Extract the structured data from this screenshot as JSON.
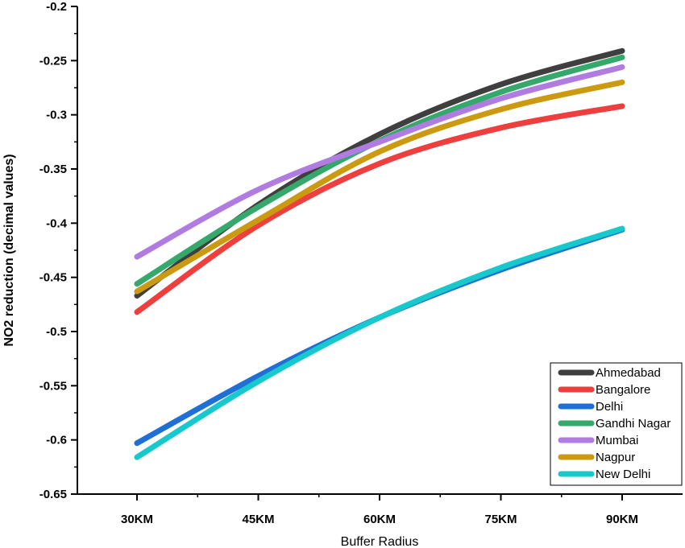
{
  "chart_data": {
    "type": "line",
    "xlabel": "Buffer Radius",
    "ylabel": "NO2 reduction (decimal values)",
    "categories": [
      "30KM",
      "45KM",
      "60KM",
      "75KM",
      "90KM"
    ],
    "yticks": [
      "-0.2",
      "-0.25",
      "-0.3",
      "-0.35",
      "-0.4",
      "-0.45",
      "-0.5",
      "-0.55",
      "-0.6",
      "-0.65"
    ],
    "ylim": [
      -0.65,
      -0.2
    ],
    "grid": false,
    "legend_position": "bottom-right",
    "series": [
      {
        "name": "Ahmedabad",
        "color": "#3f3f3f",
        "values": [
          -0.467,
          -0.383,
          -0.318,
          -0.272,
          -0.241
        ]
      },
      {
        "name": "Bangalore",
        "color": "#ee3e3e",
        "values": [
          -0.482,
          -0.402,
          -0.345,
          -0.312,
          -0.292
        ]
      },
      {
        "name": "Delhi",
        "color": "#1e6fd6",
        "values": [
          -0.603,
          -0.541,
          -0.487,
          -0.443,
          -0.406
        ]
      },
      {
        "name": "Gandhi Nagar",
        "color": "#35a86b",
        "values": [
          -0.456,
          -0.385,
          -0.324,
          -0.279,
          -0.247
        ]
      },
      {
        "name": "Mumbai",
        "color": "#b07ce2",
        "values": [
          -0.431,
          -0.369,
          -0.325,
          -0.285,
          -0.256
        ]
      },
      {
        "name": "Nagpur",
        "color": "#cc9a10",
        "values": [
          -0.463,
          -0.397,
          -0.334,
          -0.295,
          -0.27
        ]
      },
      {
        "name": "New Delhi",
        "color": "#17c9cc",
        "values": [
          -0.616,
          -0.546,
          -0.487,
          -0.441,
          -0.405
        ]
      }
    ]
  }
}
